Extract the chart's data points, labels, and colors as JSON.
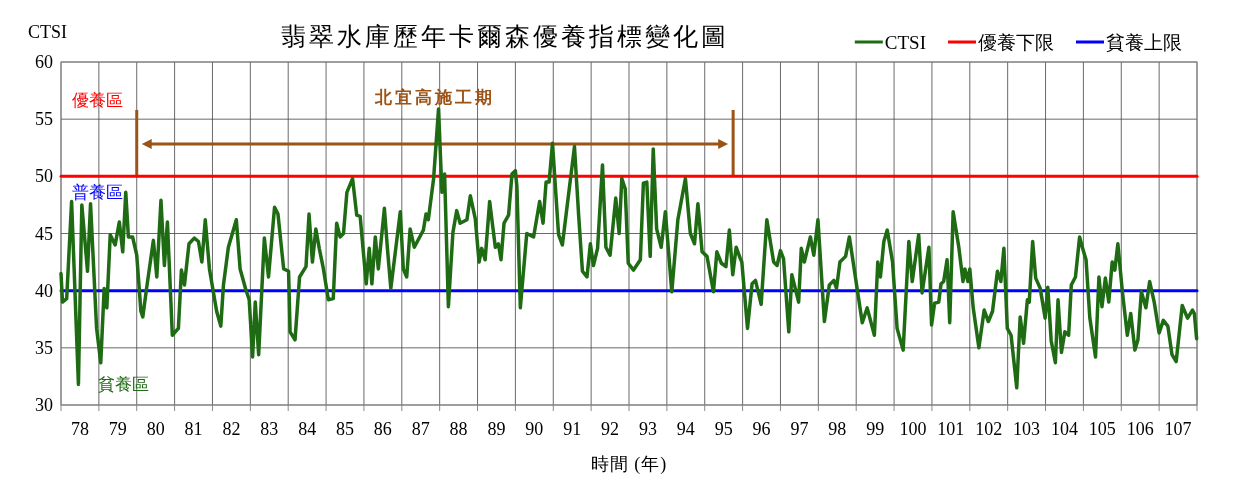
{
  "chart_data": {
    "type": "line",
    "title": "翡翠水庫歷年卡爾森優養指標變化圖",
    "xlabel": "時間 (年)",
    "ylabel": "CTSI",
    "xlim": [
      78,
      108
    ],
    "ylim": [
      30,
      60
    ],
    "yticks": [
      30,
      35,
      40,
      45,
      50,
      55,
      60
    ],
    "xticks": [
      {
        "value": 78,
        "label": null
      },
      {
        "value": 78.5,
        "label": "78"
      },
      {
        "value": 79,
        "label": null
      },
      {
        "value": 79.5,
        "label": "79"
      },
      {
        "value": 80,
        "label": null
      },
      {
        "value": 80.5,
        "label": "80"
      },
      {
        "value": 81,
        "label": null
      },
      {
        "value": 81.5,
        "label": "81"
      },
      {
        "value": 82,
        "label": null
      },
      {
        "value": 82.5,
        "label": "82"
      },
      {
        "value": 83,
        "label": null
      },
      {
        "value": 83.5,
        "label": "83"
      },
      {
        "value": 84,
        "label": null
      },
      {
        "value": 84.5,
        "label": "84"
      },
      {
        "value": 85,
        "label": null
      },
      {
        "value": 85.5,
        "label": "85"
      },
      {
        "value": 86,
        "label": null
      },
      {
        "value": 86.5,
        "label": "86"
      },
      {
        "value": 87,
        "label": null
      },
      {
        "value": 87.5,
        "label": "87"
      },
      {
        "value": 88,
        "label": null
      },
      {
        "value": 88.5,
        "label": "88"
      },
      {
        "value": 89,
        "label": null
      },
      {
        "value": 89.5,
        "label": "89"
      },
      {
        "value": 90,
        "label": null
      },
      {
        "value": 90.5,
        "label": "90"
      },
      {
        "value": 91,
        "label": null
      },
      {
        "value": 91.5,
        "label": "91"
      },
      {
        "value": 92,
        "label": null
      },
      {
        "value": 92.5,
        "label": "92"
      },
      {
        "value": 93,
        "label": null
      },
      {
        "value": 93.5,
        "label": "93"
      },
      {
        "value": 94,
        "label": null
      },
      {
        "value": 94.5,
        "label": "94"
      },
      {
        "value": 95,
        "label": null
      },
      {
        "value": 95.5,
        "label": "95"
      },
      {
        "value": 96,
        "label": null
      },
      {
        "value": 96.5,
        "label": "96"
      },
      {
        "value": 97,
        "label": null
      },
      {
        "value": 97.5,
        "label": "97"
      },
      {
        "value": 98,
        "label": null
      },
      {
        "value": 98.5,
        "label": "98"
      },
      {
        "value": 99,
        "label": null
      },
      {
        "value": 99.5,
        "label": "99"
      },
      {
        "value": 100,
        "label": null
      },
      {
        "value": 100.5,
        "label": "100"
      },
      {
        "value": 101,
        "label": null
      },
      {
        "value": 101.5,
        "label": "101"
      },
      {
        "value": 102,
        "label": null
      },
      {
        "value": 102.5,
        "label": "102"
      },
      {
        "value": 103,
        "label": null
      },
      {
        "value": 103.5,
        "label": "103"
      },
      {
        "value": 104,
        "label": null
      },
      {
        "value": 104.5,
        "label": "104"
      },
      {
        "value": 105,
        "label": null
      },
      {
        "value": 105.5,
        "label": "105"
      },
      {
        "value": 106,
        "label": null
      },
      {
        "value": 106.5,
        "label": "106"
      },
      {
        "value": 107,
        "label": null
      },
      {
        "value": 107.5,
        "label": "107"
      },
      {
        "value": 108,
        "label": null
      }
    ],
    "grid": true,
    "legend": "top right",
    "series": [
      {
        "name": "CTSI",
        "color": "#1e6b14",
        "x": [
          78.0,
          78.04,
          78.15,
          78.28,
          78.46,
          78.55,
          78.7,
          78.78,
          78.94,
          79.05,
          79.14,
          79.21,
          79.3,
          79.43,
          79.54,
          79.63,
          79.71,
          79.78,
          79.89,
          80.0,
          80.11,
          80.16,
          80.26,
          80.44,
          80.53,
          80.64,
          80.73,
          80.81,
          80.94,
          81.1,
          81.18,
          81.26,
          81.38,
          81.52,
          81.63,
          81.72,
          81.81,
          81.92,
          82.11,
          82.22,
          82.29,
          82.42,
          82.63,
          82.73,
          82.88,
          82.97,
          83.06,
          83.13,
          83.22,
          83.37,
          83.48,
          83.64,
          83.73,
          83.88,
          84.01,
          84.05,
          84.18,
          84.3,
          84.47,
          84.55,
          84.64,
          84.73,
          84.82,
          84.93,
          85.06,
          85.19,
          85.28,
          85.37,
          85.46,
          85.55,
          85.7,
          85.81,
          85.9,
          86.06,
          86.14,
          86.21,
          86.3,
          86.38,
          86.54,
          86.62,
          86.71,
          86.83,
          86.96,
          87.04,
          87.13,
          87.22,
          87.33,
          87.41,
          87.57,
          87.64,
          87.7,
          87.84,
          87.97,
          88.06,
          88.13,
          88.23,
          88.35,
          88.45,
          88.54,
          88.72,
          88.81,
          88.94,
          89.04,
          89.11,
          89.2,
          89.32,
          89.47,
          89.55,
          89.62,
          89.7,
          89.82,
          89.91,
          90.0,
          90.04,
          90.13,
          90.3,
          90.48,
          90.64,
          90.73,
          90.81,
          90.89,
          90.98,
          91.14,
          91.24,
          91.4,
          91.56,
          91.67,
          91.77,
          91.89,
          91.98,
          92.06,
          92.17,
          92.3,
          92.39,
          92.5,
          92.65,
          92.74,
          92.81,
          92.9,
          92.98,
          93.12,
          93.3,
          93.38,
          93.47,
          93.56,
          93.64,
          93.73,
          93.85,
          93.96,
          94.13,
          94.29,
          94.49,
          94.62,
          94.73,
          94.82,
          94.93,
          95.06,
          95.23,
          95.32,
          95.44,
          95.56,
          95.65,
          95.74,
          95.83,
          95.94,
          95.98,
          96.13,
          96.25,
          96.34,
          96.49,
          96.64,
          96.82,
          96.91,
          97.0,
          97.08,
          97.22,
          97.3,
          97.48,
          97.55,
          97.63,
          97.79,
          97.88,
          97.99,
          98.16,
          98.29,
          98.41,
          98.48,
          98.57,
          98.72,
          98.82,
          99.01,
          99.16,
          99.29,
          99.48,
          99.57,
          99.64,
          99.73,
          99.82,
          99.96,
          100.08,
          100.24,
          100.39,
          100.48,
          100.65,
          100.74,
          100.92,
          100.99,
          101.07,
          101.18,
          101.24,
          101.31,
          101.4,
          101.47,
          101.56,
          101.71,
          101.82,
          101.87,
          101.95,
          102.0,
          102.09,
          102.24,
          102.38,
          102.49,
          102.6,
          102.73,
          102.82,
          102.9,
          102.99,
          103.09,
          103.24,
          103.33,
          103.42,
          103.52,
          103.57,
          103.66,
          103.74,
          103.86,
          103.99,
          104.06,
          104.15,
          104.26,
          104.33,
          104.42,
          104.51,
          104.61,
          104.68,
          104.79,
          104.9,
          104.98,
          105.07,
          105.17,
          105.32,
          105.41,
          105.49,
          105.58,
          105.67,
          105.76,
          105.83,
          105.91,
          106.03,
          106.16,
          106.25,
          106.36,
          106.44,
          106.53,
          106.65,
          106.75,
          106.87,
          107.0,
          107.11,
          107.23,
          107.34,
          107.45,
          107.61,
          107.75,
          107.88,
          107.93,
          107.99
        ],
        "values": [
          41.5,
          39.0,
          39.3,
          47.8,
          31.8,
          47.5,
          41.7,
          47.6,
          36.7,
          33.7,
          40.2,
          38.5,
          44.9,
          44.0,
          46.0,
          43.4,
          48.6,
          44.7,
          44.7,
          43.1,
          38.2,
          37.7,
          40.2,
          44.4,
          41.2,
          47.9,
          42.2,
          46.0,
          36.1,
          36.7,
          41.8,
          40.5,
          44.1,
          44.6,
          44.3,
          42.5,
          46.2,
          41.9,
          38.2,
          36.9,
          40.5,
          43.8,
          46.2,
          41.9,
          40.1,
          39.2,
          34.2,
          39.0,
          34.4,
          44.6,
          41.2,
          47.3,
          46.7,
          41.9,
          41.7,
          36.4,
          35.7,
          41.2,
          42.1,
          46.7,
          42.5,
          45.4,
          43.7,
          41.9,
          39.2,
          39.3,
          45.9,
          44.7,
          45.0,
          48.6,
          49.8,
          46.6,
          46.5,
          40.6,
          43.7,
          40.6,
          44.7,
          41.9,
          47.2,
          43.7,
          40.2,
          43.4,
          46.9,
          41.9,
          41.2,
          45.4,
          43.8,
          44.3,
          45.3,
          46.7,
          46.2,
          49.8,
          55.9,
          48.6,
          50.2,
          38.6,
          45.1,
          47.0,
          45.9,
          46.2,
          48.3,
          46.3,
          42.5,
          43.7,
          42.7,
          47.8,
          43.8,
          44.1,
          42.7,
          45.9,
          46.6,
          50.2,
          50.5,
          49.1,
          38.5,
          45.0,
          44.7,
          47.8,
          45.9,
          49.5,
          49.5,
          52.9,
          44.9,
          44.0,
          48.3,
          52.6,
          46.6,
          41.7,
          41.2,
          44.1,
          42.2,
          43.7,
          51.0,
          43.8,
          43.1,
          48.1,
          45.0,
          49.8,
          48.9,
          42.4,
          41.8,
          42.7,
          49.4,
          49.5,
          43.0,
          52.4,
          45.4,
          43.8,
          46.9,
          39.9,
          46.2,
          49.8,
          45.0,
          44.1,
          47.6,
          43.4,
          43.0,
          39.9,
          43.4,
          42.4,
          42.1,
          45.3,
          41.4,
          43.8,
          42.8,
          42.5,
          36.7,
          40.6,
          40.9,
          38.8,
          46.2,
          42.5,
          42.2,
          43.5,
          42.8,
          36.4,
          41.4,
          39.0,
          43.7,
          42.5,
          44.7,
          43.1,
          46.2,
          37.3,
          40.5,
          40.9,
          40.2,
          42.5,
          43.0,
          44.7,
          40.5,
          37.2,
          38.5,
          36.1,
          42.5,
          41.2,
          44.3,
          45.3,
          42.5,
          36.7,
          34.8,
          44.3,
          40.8,
          44.9,
          39.8,
          43.8,
          37.0,
          38.9,
          39.0,
          40.6,
          40.8,
          42.7,
          37.2,
          46.9,
          43.8,
          40.8,
          41.9,
          40.8,
          41.9,
          38.5,
          35.0,
          38.3,
          37.3,
          38.2,
          41.7,
          40.8,
          43.7,
          36.7,
          36.1,
          31.5,
          37.7,
          35.4,
          39.2,
          39.0,
          44.3,
          41.1,
          40.2,
          37.6,
          40.3,
          35.6,
          33.7,
          39.2,
          34.6,
          36.4,
          36.1,
          40.5,
          41.2,
          44.7,
          43.7,
          42.7,
          37.6,
          34.2,
          41.2,
          38.6,
          41.1,
          39.0,
          42.5,
          41.8,
          44.1,
          39.9,
          36.1,
          38.0,
          34.8,
          35.7,
          39.9,
          38.5,
          40.8,
          39.0,
          36.3,
          37.4,
          36.9,
          34.4,
          33.8,
          38.7,
          37.6,
          38.3,
          38.0,
          35.8
        ]
      },
      {
        "name": "優養下限",
        "color": "#ff0000",
        "x": [
          78,
          108
        ],
        "values": [
          50,
          50
        ]
      },
      {
        "name": "貧養上限",
        "color": "#0000ff",
        "x": [
          78,
          108
        ],
        "values": [
          40,
          40
        ]
      }
    ],
    "ref_lines": [
      {
        "axis": "x",
        "value": 80.0,
        "color": "#9c5316"
      },
      {
        "axis": "x",
        "value": 95.75,
        "color": "#9c5316"
      }
    ],
    "annotations": [
      "優養區",
      "普養區",
      "貧養區",
      "北宜高施工期"
    ]
  }
}
